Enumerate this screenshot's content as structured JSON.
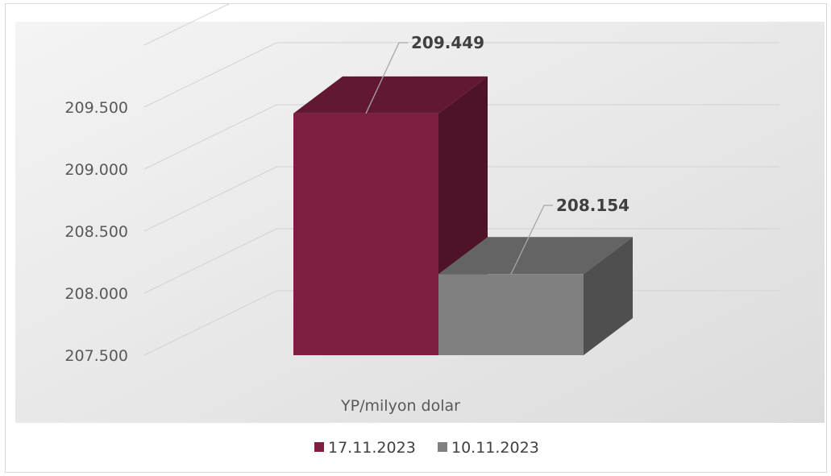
{
  "chart_data": {
    "type": "bar",
    "title": "",
    "xlabel": "YP/milyon dolar",
    "ylabel": "",
    "categories": [
      "YP/milyon dolar"
    ],
    "series": [
      {
        "name": "17.11.2023",
        "values": [
          209449
        ],
        "color": "#7E1E42",
        "data_label": "209.449"
      },
      {
        "name": "10.11.2023",
        "values": [
          208154
        ],
        "color": "#808080",
        "data_label": "208.154"
      }
    ],
    "ylim": [
      207500,
      210000
    ],
    "y_ticks": [
      {
        "value": 207500,
        "label": "207.500"
      },
      {
        "value": 208000,
        "label": "208.000"
      },
      {
        "value": 208500,
        "label": "208.500"
      },
      {
        "value": 209000,
        "label": "209.000"
      },
      {
        "value": 209500,
        "label": "209.500"
      }
    ],
    "grid": true,
    "style": "3d",
    "legend_position": "bottom"
  }
}
